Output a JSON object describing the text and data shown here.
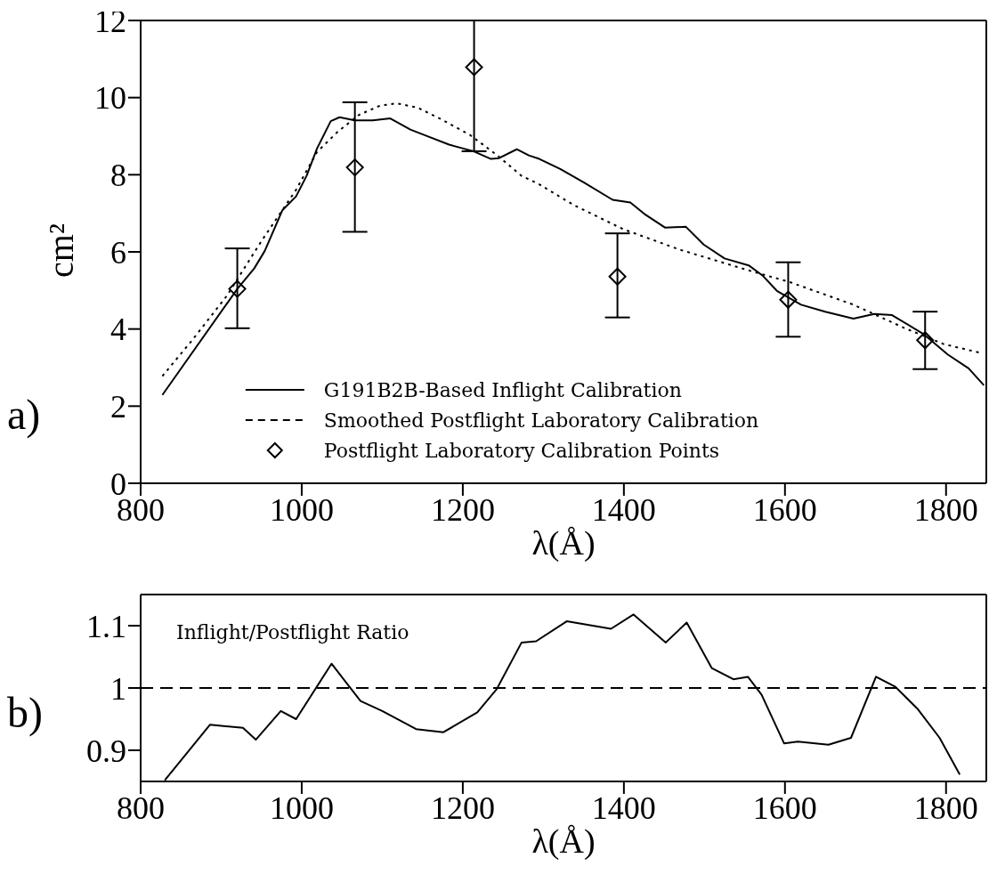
{
  "chart_data": [
    {
      "type": "line",
      "xlabel": "λ(Å)",
      "ylabel": "cm²",
      "xlim": [
        800,
        1850
      ],
      "ylim": [
        0,
        12
      ],
      "xticks": [
        800,
        1000,
        1200,
        1400,
        1600,
        1800
      ],
      "yticks": [
        0,
        2,
        4,
        6,
        8,
        10,
        12
      ],
      "grid": false,
      "legend": "bottom",
      "annotations": [
        "a)"
      ],
      "series": [
        {
          "name": "G191B2B-Based Inflight Calibration",
          "line_style": "solid",
          "color": "#000000",
          "x": [
            827,
            920,
            941,
            954,
            976,
            993,
            1006,
            1019,
            1036,
            1047,
            1066,
            1088,
            1110,
            1135,
            1157,
            1183,
            1213,
            1235,
            1245,
            1267,
            1282,
            1295,
            1321,
            1351,
            1386,
            1408,
            1425,
            1451,
            1477,
            1499,
            1525,
            1555,
            1572,
            1590,
            1620,
            1650,
            1685,
            1711,
            1733,
            1772,
            1802,
            1828,
            1847
          ],
          "values": [
            2.29,
            5.04,
            5.57,
            6.02,
            7.08,
            7.44,
            7.97,
            8.68,
            9.39,
            9.49,
            9.41,
            9.41,
            9.46,
            9.17,
            8.99,
            8.78,
            8.61,
            8.41,
            8.43,
            8.66,
            8.5,
            8.41,
            8.15,
            7.79,
            7.35,
            7.28,
            6.99,
            6.63,
            6.65,
            6.19,
            5.83,
            5.65,
            5.39,
            4.99,
            4.63,
            4.45,
            4.27,
            4.39,
            4.36,
            3.87,
            3.34,
            2.98,
            2.54
          ]
        },
        {
          "name": "Smoothed Postflight Laboratory Calibration",
          "type": "line",
          "line_style": "dotted",
          "color": "#000000",
          "x": [
            827,
            864,
            907,
            950,
            993,
            1019,
            1045,
            1071,
            1097,
            1118,
            1144,
            1174,
            1209,
            1243,
            1273,
            1295,
            1338,
            1399,
            1469,
            1555,
            1607,
            1685,
            1750,
            1797,
            1843
          ],
          "values": [
            2.78,
            3.71,
            4.86,
            6.28,
            7.61,
            8.59,
            9.12,
            9.55,
            9.79,
            9.85,
            9.74,
            9.43,
            9.03,
            8.5,
            7.97,
            7.75,
            7.21,
            6.59,
            6.06,
            5.52,
            5.21,
            4.63,
            4.01,
            3.61,
            3.38
          ]
        },
        {
          "name": "Postflight Laboratory Calibration Points",
          "type": "scatter",
          "marker": "diamond",
          "color": "#000000",
          "x": [
            920,
            1066,
            1214,
            1392,
            1604,
            1774
          ],
          "values": [
            5.04,
            8.19,
            10.79,
            5.36,
            4.76,
            3.71
          ],
          "errors": [
            [
              4.02,
              6.09
            ],
            [
              6.52,
              9.88
            ],
            [
              8.61,
              12
            ],
            [
              4.3,
              6.48
            ],
            [
              3.8,
              5.73
            ],
            [
              2.96,
              4.45
            ]
          ]
        }
      ]
    },
    {
      "type": "line",
      "xlabel": "λ(Å)",
      "xlim": [
        800,
        1850
      ],
      "ylim": [
        0.85,
        1.15
      ],
      "xticks": [
        800,
        1000,
        1200,
        1400,
        1600,
        1800
      ],
      "yticks": [
        0.9,
        1,
        1.1
      ],
      "grid": false,
      "annotations": [
        "b)",
        "Inflight/Postflight Ratio"
      ],
      "ref_lines": [
        {
          "axis": "y",
          "value": 1,
          "line_style": "dashed",
          "color": "#000000"
        }
      ],
      "series": [
        {
          "line_style": "solid",
          "color": "#000000",
          "x": [
            830,
            886,
            927,
            943,
            974,
            993,
            1037,
            1073,
            1100,
            1142,
            1176,
            1218,
            1242,
            1273,
            1291,
            1329,
            1384,
            1412,
            1452,
            1478,
            1509,
            1536,
            1554,
            1571,
            1599,
            1616,
            1654,
            1682,
            1713,
            1737,
            1765,
            1792,
            1817
          ],
          "values": [
            0.852,
            0.941,
            0.936,
            0.917,
            0.963,
            0.95,
            1.039,
            0.979,
            0.963,
            0.934,
            0.929,
            0.961,
            0.998,
            1.073,
            1.075,
            1.107,
            1.095,
            1.118,
            1.073,
            1.105,
            1.032,
            1.014,
            1.018,
            0.989,
            0.911,
            0.914,
            0.909,
            0.92,
            1.018,
            1.002,
            0.966,
            0.92,
            0.861
          ]
        }
      ]
    }
  ]
}
